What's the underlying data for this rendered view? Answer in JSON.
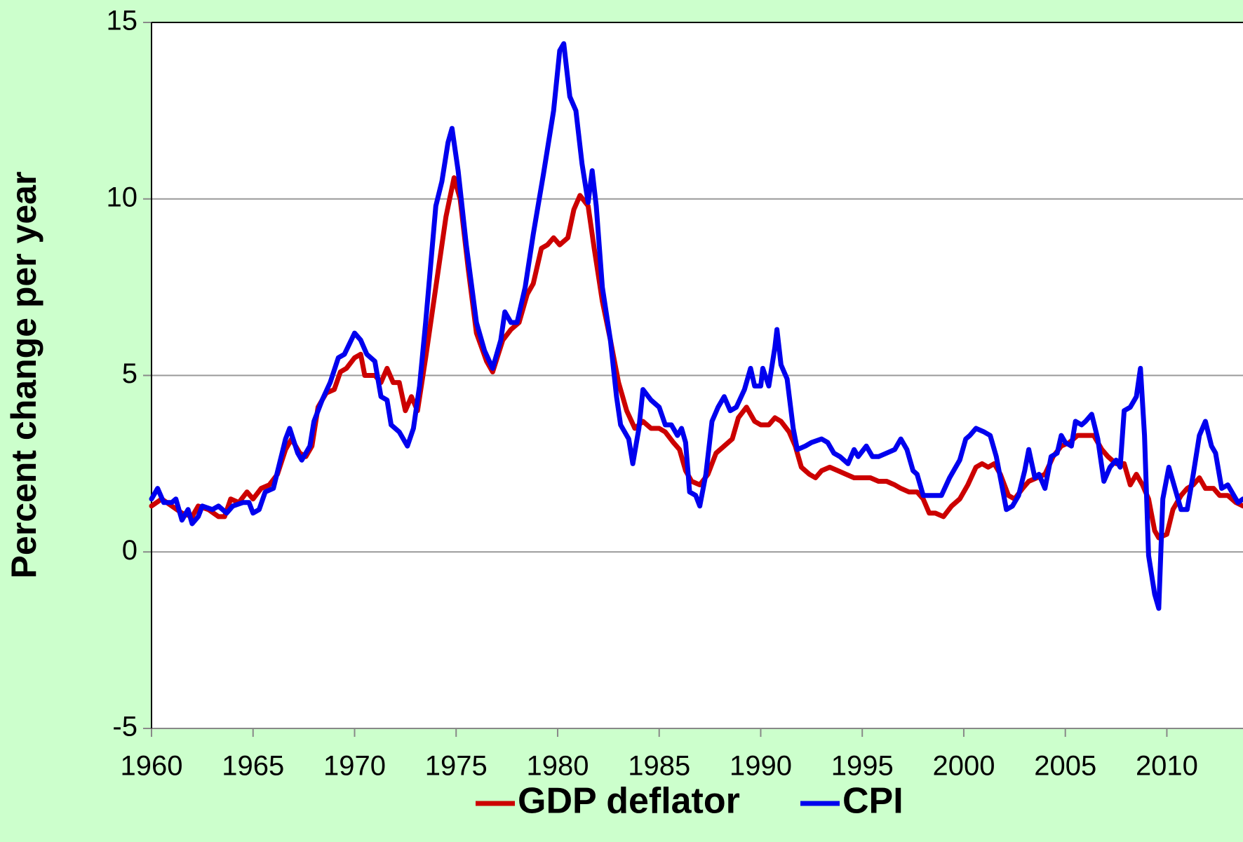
{
  "chart_data": {
    "type": "line",
    "ylabel": "Percent change per year",
    "xlim": [
      1960,
      2013.75
    ],
    "xticks": [
      1960,
      1965,
      1970,
      1975,
      1980,
      1985,
      1990,
      1995,
      2000,
      2005,
      2010
    ],
    "ylim": [
      -5,
      15
    ],
    "yticks": [
      -5,
      0,
      5,
      10,
      15
    ],
    "grid": true,
    "legend": "bottom",
    "series": [
      {
        "name": "GDP deflator",
        "color": "#cc0000",
        "x": [
          1960,
          1960.5,
          1961,
          1961.5,
          1962,
          1962.3,
          1962.8,
          1963.3,
          1963.6,
          1963.9,
          1964.3,
          1964.7,
          1965,
          1965.4,
          1965.8,
          1966.2,
          1966.6,
          1966.9,
          1967.3,
          1967.6,
          1967.9,
          1968.2,
          1968.6,
          1969,
          1969.3,
          1969.6,
          1970,
          1970.3,
          1970.5,
          1971,
          1971.3,
          1971.6,
          1971.9,
          1972.2,
          1972.5,
          1972.8,
          1973.1,
          1973.5,
          1974,
          1974.5,
          1974.9,
          1975.2,
          1975.6,
          1976,
          1976.5,
          1976.8,
          1977.3,
          1977.7,
          1978.1,
          1978.5,
          1978.8,
          1979.2,
          1979.5,
          1979.8,
          1980.1,
          1980.5,
          1980.8,
          1981.1,
          1981.5,
          1981.8,
          1982.2,
          1982.6,
          1983,
          1983.4,
          1983.8,
          1984.2,
          1984.6,
          1985,
          1985.3,
          1985.7,
          1986,
          1986.3,
          1986.6,
          1987,
          1987.4,
          1987.8,
          1988.2,
          1988.6,
          1988.9,
          1989.3,
          1989.7,
          1990,
          1990.4,
          1990.7,
          1991,
          1991.4,
          1991.7,
          1992,
          1992.4,
          1992.7,
          1993,
          1993.4,
          1993.8,
          1994.2,
          1994.6,
          1995,
          1995.4,
          1995.8,
          1996.2,
          1996.6,
          1996.9,
          1997.3,
          1997.7,
          1998,
          1998.3,
          1998.6,
          1999,
          1999.4,
          1999.8,
          2000.2,
          2000.6,
          2000.9,
          2001.2,
          2001.5,
          2001.8,
          2002.2,
          2002.5,
          2002.9,
          2003.2,
          2003.6,
          2004,
          2004.4,
          2004.8,
          2005.2,
          2005.6,
          2006,
          2006.4,
          2006.8,
          2007.1,
          2007.5,
          2007.9,
          2008.2,
          2008.5,
          2008.8,
          2009.1,
          2009.4,
          2009.6,
          2010,
          2010.3,
          2010.7,
          2011,
          2011.3,
          2011.6,
          2011.9,
          2012.3,
          2012.6,
          2013,
          2013.4,
          2013.75
        ],
        "values": [
          1.3,
          1.5,
          1.3,
          1.1,
          1.0,
          1.3,
          1.2,
          1.0,
          1.0,
          1.5,
          1.4,
          1.7,
          1.5,
          1.8,
          1.9,
          2.2,
          2.9,
          3.2,
          2.8,
          2.7,
          3.0,
          4.1,
          4.5,
          4.6,
          5.1,
          5.2,
          5.5,
          5.6,
          5.0,
          5.0,
          4.8,
          5.2,
          4.8,
          4.8,
          4.0,
          4.4,
          4.0,
          5.5,
          7.5,
          9.5,
          10.6,
          10.0,
          8.0,
          6.2,
          5.4,
          5.1,
          6.0,
          6.3,
          6.5,
          7.3,
          7.6,
          8.6,
          8.7,
          8.9,
          8.7,
          8.9,
          9.7,
          10.1,
          9.8,
          8.6,
          7.1,
          6.0,
          4.8,
          4.0,
          3.5,
          3.7,
          3.5,
          3.5,
          3.4,
          3.1,
          2.9,
          2.3,
          2.0,
          1.9,
          2.2,
          2.8,
          3.0,
          3.2,
          3.8,
          4.1,
          3.7,
          3.6,
          3.6,
          3.8,
          3.7,
          3.4,
          3.0,
          2.4,
          2.2,
          2.1,
          2.3,
          2.4,
          2.3,
          2.2,
          2.1,
          2.1,
          2.1,
          2.0,
          2.0,
          1.9,
          1.8,
          1.7,
          1.7,
          1.5,
          1.1,
          1.1,
          1.0,
          1.3,
          1.5,
          1.9,
          2.4,
          2.5,
          2.4,
          2.5,
          2.2,
          1.6,
          1.5,
          1.8,
          2.0,
          2.1,
          2.2,
          2.7,
          3.0,
          3.1,
          3.3,
          3.3,
          3.3,
          2.9,
          2.7,
          2.5,
          2.5,
          1.9,
          2.2,
          1.9,
          1.5,
          0.6,
          0.4,
          0.5,
          1.2,
          1.6,
          1.8,
          1.9,
          2.1,
          1.8,
          1.8,
          1.6,
          1.6,
          1.4,
          1.3
        ]
      },
      {
        "name": "CPI",
        "color": "#0000ee",
        "x": [
          1960,
          1960.3,
          1960.6,
          1961,
          1961.2,
          1961.5,
          1961.8,
          1962,
          1962.3,
          1962.5,
          1963,
          1963.3,
          1963.7,
          1964,
          1964.5,
          1964.8,
          1965,
          1965.3,
          1965.6,
          1966,
          1966.3,
          1966.6,
          1966.8,
          1967.2,
          1967.4,
          1967.8,
          1968,
          1968.4,
          1968.8,
          1969.2,
          1969.5,
          1970,
          1970.3,
          1970.6,
          1971,
          1971.3,
          1971.6,
          1971.8,
          1972.2,
          1972.6,
          1972.9,
          1973.2,
          1973.5,
          1974,
          1974.3,
          1974.6,
          1974.8,
          1975.1,
          1975.5,
          1976,
          1976.4,
          1976.8,
          1977.2,
          1977.4,
          1977.7,
          1978,
          1978.4,
          1978.8,
          1979.3,
          1979.8,
          1980.1,
          1980.3,
          1980.6,
          1980.9,
          1981.2,
          1981.5,
          1981.7,
          1981.9,
          1982.2,
          1982.6,
          1982.9,
          1983.1,
          1983.5,
          1983.7,
          1984,
          1984.2,
          1984.6,
          1985,
          1985.3,
          1985.6,
          1985.9,
          1986.1,
          1986.3,
          1986.5,
          1986.8,
          1987,
          1987.3,
          1987.6,
          1987.9,
          1988.2,
          1988.5,
          1988.8,
          1989.2,
          1989.5,
          1989.7,
          1990,
          1990.1,
          1990.4,
          1990.7,
          1990.8,
          1991,
          1991.3,
          1991.6,
          1991.8,
          1992.2,
          1992.5,
          1993,
          1993.3,
          1993.6,
          1993.9,
          1994.3,
          1994.6,
          1994.8,
          1995.2,
          1995.5,
          1995.8,
          1996.2,
          1996.6,
          1996.9,
          1997.2,
          1997.5,
          1997.7,
          1998,
          1998.5,
          1998.9,
          1999.3,
          1999.8,
          2000.1,
          2000.3,
          2000.6,
          2001,
          2001.3,
          2001.6,
          2001.9,
          2002.1,
          2002.4,
          2002.7,
          2003,
          2003.2,
          2003.5,
          2003.7,
          2004,
          2004.3,
          2004.6,
          2004.8,
          2005,
          2005.3,
          2005.5,
          2005.8,
          2006,
          2006.3,
          2006.6,
          2006.9,
          2007.2,
          2007.5,
          2007.7,
          2007.9,
          2008.2,
          2008.5,
          2008.7,
          2008.9,
          2009.1,
          2009.4,
          2009.6,
          2009.8,
          2010.1,
          2010.4,
          2010.7,
          2011,
          2011.3,
          2011.6,
          2011.9,
          2012.2,
          2012.4,
          2012.7,
          2013,
          2013.3,
          2013.5,
          2013.75
        ],
        "values": [
          1.5,
          1.8,
          1.4,
          1.4,
          1.5,
          0.9,
          1.2,
          0.8,
          1.0,
          1.3,
          1.2,
          1.3,
          1.1,
          1.3,
          1.4,
          1.4,
          1.1,
          1.2,
          1.7,
          1.8,
          2.5,
          3.2,
          3.5,
          2.8,
          2.6,
          3.0,
          3.7,
          4.3,
          4.8,
          5.5,
          5.6,
          6.2,
          6.0,
          5.6,
          5.4,
          4.4,
          4.3,
          3.6,
          3.4,
          3.0,
          3.5,
          4.7,
          6.5,
          9.8,
          10.5,
          11.6,
          12.0,
          10.8,
          8.7,
          6.5,
          5.7,
          5.2,
          6.0,
          6.8,
          6.5,
          6.5,
          7.5,
          9.0,
          10.7,
          12.5,
          14.2,
          14.4,
          12.9,
          12.5,
          11.0,
          9.9,
          10.8,
          9.8,
          7.5,
          6.0,
          4.4,
          3.6,
          3.2,
          2.5,
          3.5,
          4.6,
          4.3,
          4.1,
          3.6,
          3.6,
          3.3,
          3.5,
          3.1,
          1.7,
          1.6,
          1.3,
          2.2,
          3.7,
          4.1,
          4.4,
          4.0,
          4.1,
          4.6,
          5.2,
          4.7,
          4.7,
          5.2,
          4.7,
          5.8,
          6.3,
          5.3,
          4.9,
          3.5,
          2.9,
          3.0,
          3.1,
          3.2,
          3.1,
          2.8,
          2.7,
          2.5,
          2.9,
          2.7,
          3.0,
          2.7,
          2.7,
          2.8,
          2.9,
          3.2,
          2.9,
          2.3,
          2.2,
          1.6,
          1.6,
          1.6,
          2.1,
          2.6,
          3.2,
          3.3,
          3.5,
          3.4,
          3.3,
          2.7,
          1.8,
          1.2,
          1.3,
          1.6,
          2.3,
          2.9,
          2.1,
          2.2,
          1.8,
          2.7,
          2.8,
          3.3,
          3.1,
          3.0,
          3.7,
          3.6,
          3.7,
          3.9,
          3.2,
          2.0,
          2.4,
          2.6,
          2.4,
          4.0,
          4.1,
          4.4,
          5.2,
          3.3,
          -0.1,
          -1.2,
          -1.6,
          1.5,
          2.4,
          1.8,
          1.2,
          1.2,
          2.2,
          3.3,
          3.7,
          3.0,
          2.8,
          1.8,
          1.9,
          1.6,
          1.4,
          1.5
        ]
      }
    ]
  }
}
